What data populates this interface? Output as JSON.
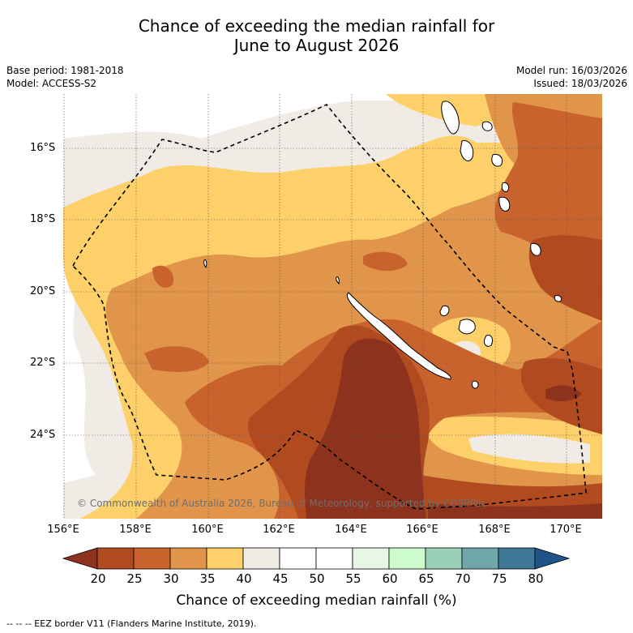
{
  "header": {
    "title_line1": "Chance of exceeding the median rainfall for",
    "title_line2": "June to August 2026",
    "base_period": "Base period: 1981-2018",
    "model": "Model: ACCESS-S2",
    "model_run": "Model run: 16/03/2026",
    "issued": "Issued: 18/03/2026"
  },
  "map": {
    "lat_labels": [
      "16°S",
      "18°S",
      "20°S",
      "22°S",
      "24°S"
    ],
    "lon_labels": [
      "156°E",
      "158°E",
      "160°E",
      "162°E",
      "164°E",
      "166°E",
      "168°E",
      "170°E"
    ],
    "copyright": "© Commonwealth of Australia 2026, Bureau of Meteorology, supported by COSPPac",
    "colors": {
      "c20_25": "#b24a20",
      "c25_30": "#c9632d",
      "c30_35": "#e0954b",
      "c35_40": "#fdd069",
      "c40_45": "#f0ebe5",
      "c45_50": "#ffffff",
      "below20": "#8d321c",
      "land": "#ffffff",
      "eez": "#000000"
    }
  },
  "colorbar": {
    "ticks": [
      "20",
      "25",
      "30",
      "35",
      "40",
      "45",
      "50",
      "55",
      "60",
      "65",
      "70",
      "75",
      "80"
    ],
    "label": "Chance of exceeding median rainfall (%)",
    "bin_colors": [
      "#b24a20",
      "#c9632d",
      "#e0954b",
      "#fdd069",
      "#f0ebe5",
      "#ffffff",
      "#ffffff",
      "#e8f6e6",
      "#ccfccc",
      "#9ad0b8",
      "#6fa6a8",
      "#3e7795"
    ],
    "low_extend_color": "#8d321c",
    "high_extend_color": "#1f5488"
  },
  "legend_note": "-- -- -- EEZ border V11 (Flanders Marine Institute, 2019)."
}
